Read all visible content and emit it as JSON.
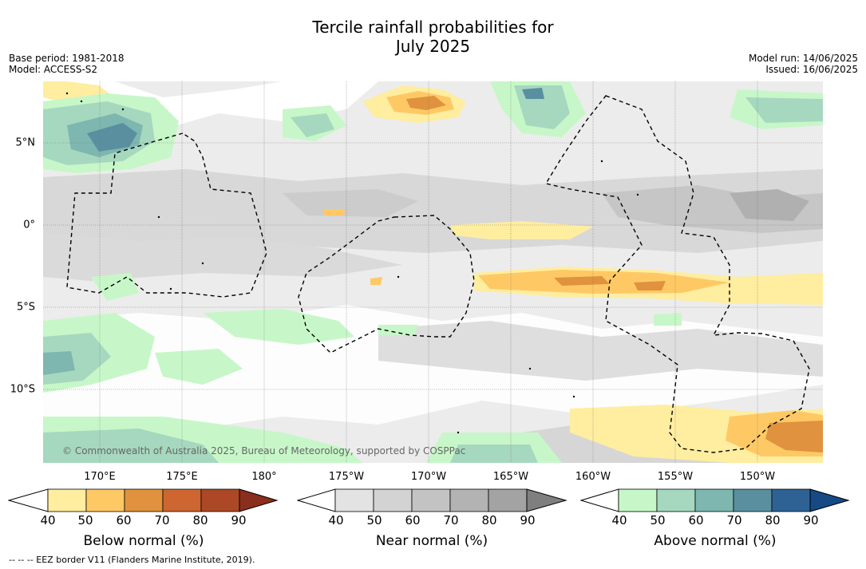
{
  "title_line1": "Tercile rainfall probabilities for",
  "title_line2": "July 2025",
  "meta": {
    "base_period": "Base period: 1981-2018",
    "model": "Model: ACCESS-S2",
    "model_run": "Model run: 14/06/2025",
    "issued": "Issued: 16/06/2025"
  },
  "map": {
    "lat_labels": [
      "5°N",
      "0°",
      "5°S",
      "10°S"
    ],
    "lon_labels": [
      "170°E",
      "175°E",
      "180°",
      "175°W",
      "170°W",
      "165°W",
      "160°W",
      "155°W",
      "150°W"
    ],
    "copyright": "© Commonwealth of Australia 2025, Bureau of Meteorology, supported by COSPPac"
  },
  "colorbars": [
    {
      "title": "Below normal (%)",
      "ticks": [
        "40",
        "50",
        "60",
        "70",
        "80",
        "90"
      ],
      "colors": [
        "#ffeda0",
        "#fec965",
        "#e0923e",
        "#cd6631",
        "#ad4826",
        "#8a2e1e"
      ]
    },
    {
      "title": "Near normal (%)",
      "ticks": [
        "40",
        "50",
        "60",
        "70",
        "80",
        "90"
      ],
      "colors": [
        "#e3e3e3",
        "#d3d3d3",
        "#c3c3c3",
        "#b3b3b3",
        "#a3a3a3",
        "#7f7f7f"
      ]
    },
    {
      "title": "Above normal (%)",
      "ticks": [
        "40",
        "50",
        "60",
        "70",
        "80",
        "90"
      ],
      "colors": [
        "#c7f7c8",
        "#a6d8bf",
        "#7eb6b0",
        "#5a8fa0",
        "#2e6294",
        "#154a85"
      ]
    }
  ],
  "footer": "--  --  -- EEZ border V11 (Flanders Marine Institute, 2019)."
}
